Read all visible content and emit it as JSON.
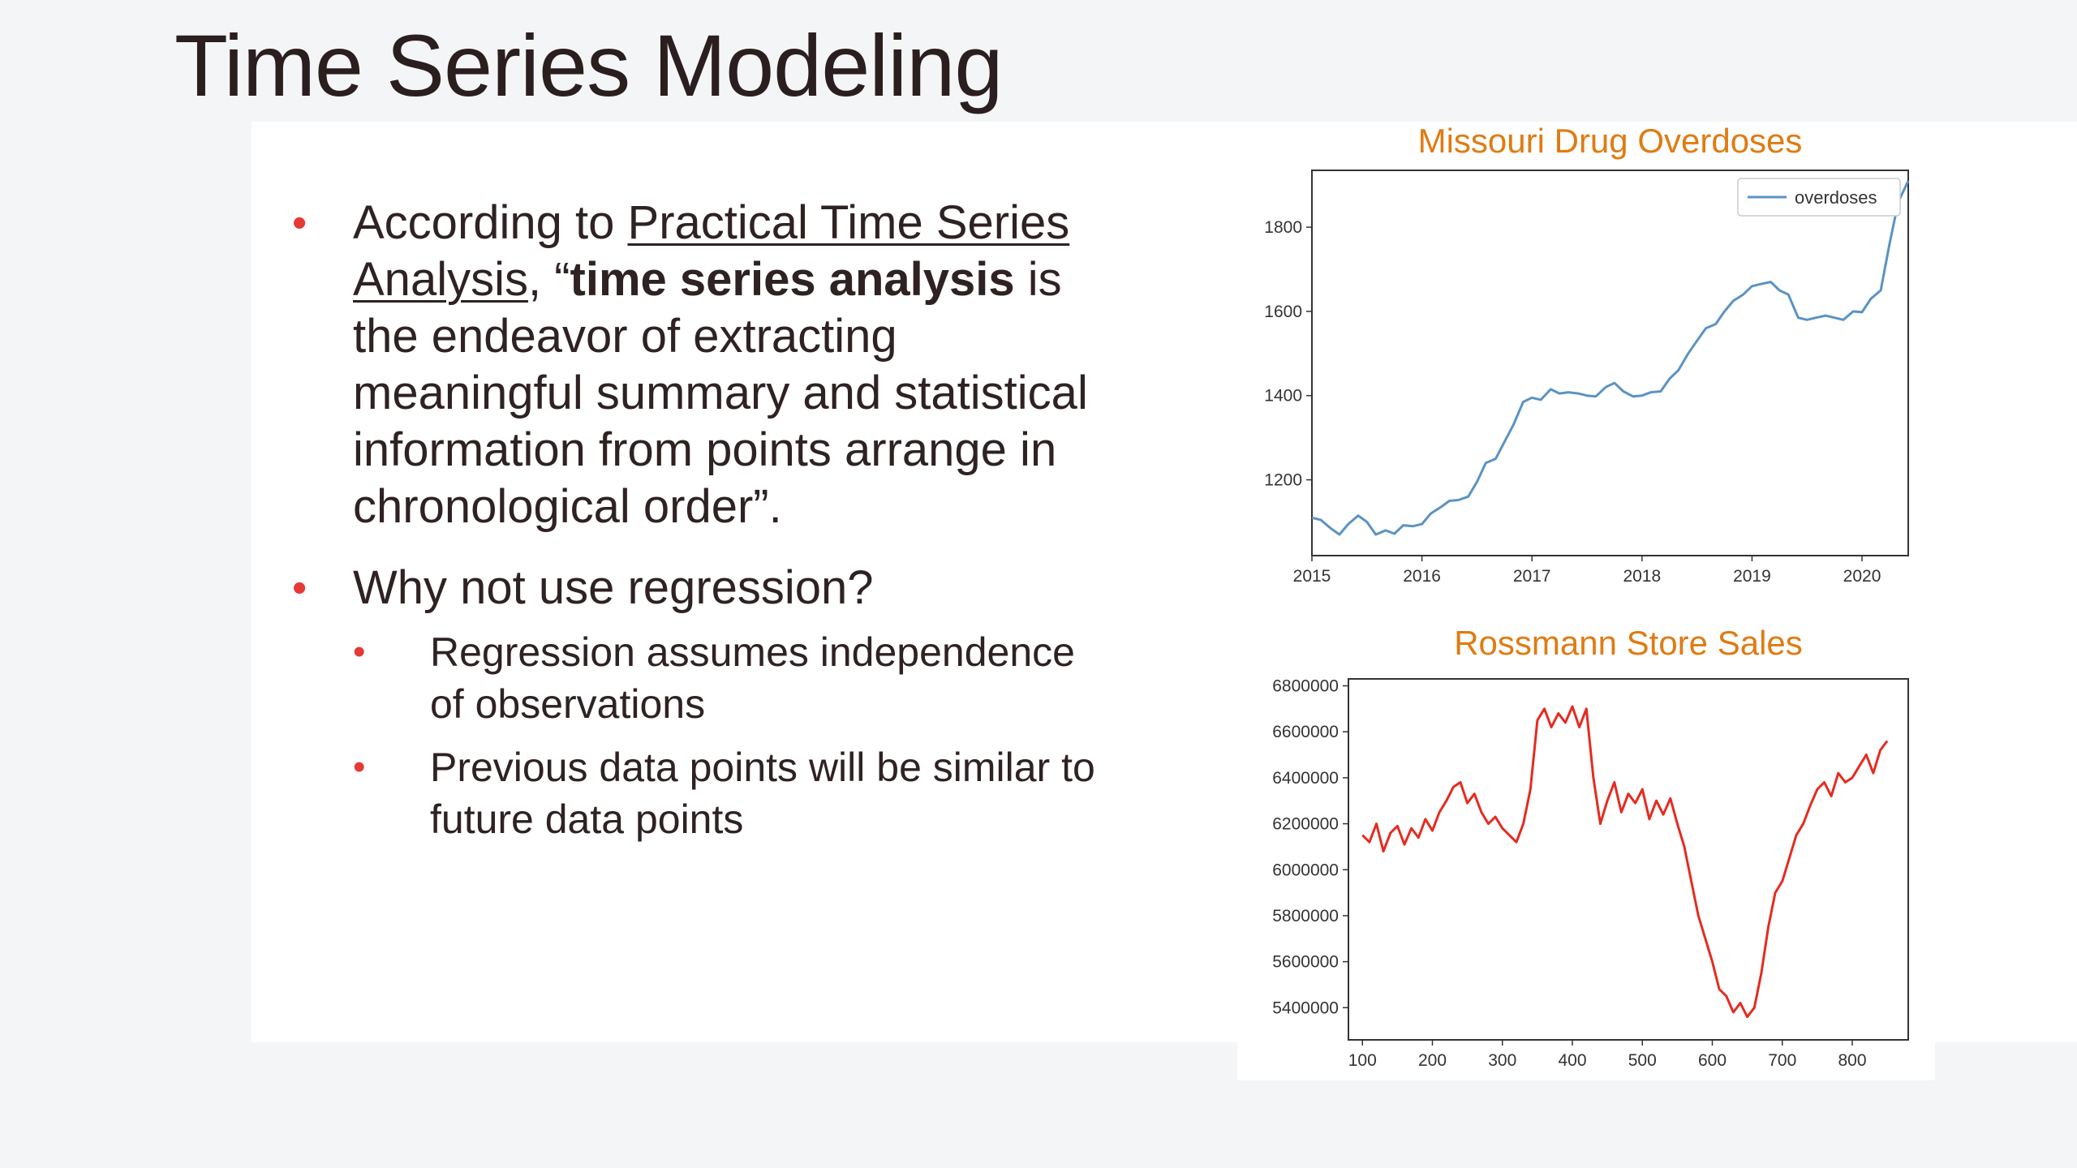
{
  "slide": {
    "title": "Time Series Modeling"
  },
  "bullets": {
    "b1": {
      "pre": "According to ",
      "link": "Practical Time Series Analysis",
      "mid": ", “",
      "bold": "time series analysis",
      "post": " is the endeavor of extracting meaningful summary and statistical information from points arrange in chronological order”."
    },
    "b2": {
      "text": "Why not use regression?",
      "sub": [
        "Regression assumes independence of observations",
        "Previous data points will be similar to future data points"
      ]
    }
  },
  "colors": {
    "bullet": "#e53935",
    "chart_title": "#e07b12",
    "overdoses_line": "#5b93c2",
    "sales_line": "#e52b20"
  },
  "chart_data": [
    {
      "type": "line",
      "title": "Missouri Drug Overdoses",
      "xlabel": "",
      "ylabel": "",
      "xlim": [
        2015,
        2020.42
      ],
      "ylim": [
        1020,
        1935
      ],
      "x_ticks": [
        "2015",
        "2016",
        "2017",
        "2018",
        "2019",
        "2020"
      ],
      "y_ticks": [
        "1200",
        "1400",
        "1600",
        "1800"
      ],
      "legend": "top-right",
      "grid": false,
      "series": [
        {
          "name": "overdoses",
          "x": [
            2015.0,
            2015.08,
            2015.17,
            2015.25,
            2015.33,
            2015.42,
            2015.5,
            2015.58,
            2015.67,
            2015.75,
            2015.83,
            2015.92,
            2016.0,
            2016.08,
            2016.17,
            2016.25,
            2016.33,
            2016.42,
            2016.5,
            2016.58,
            2016.67,
            2016.75,
            2016.83,
            2016.92,
            2017.0,
            2017.08,
            2017.17,
            2017.25,
            2017.33,
            2017.42,
            2017.5,
            2017.58,
            2017.67,
            2017.75,
            2017.83,
            2017.92,
            2018.0,
            2018.08,
            2018.17,
            2018.25,
            2018.33,
            2018.42,
            2018.5,
            2018.58,
            2018.67,
            2018.75,
            2018.83,
            2018.92,
            2019.0,
            2019.08,
            2019.17,
            2019.25,
            2019.33,
            2019.42,
            2019.5,
            2019.58,
            2019.67,
            2019.75,
            2019.83,
            2019.92,
            2020.0,
            2020.08,
            2020.17,
            2020.25,
            2020.33,
            2020.42
          ],
          "y": [
            1110,
            1105,
            1085,
            1070,
            1095,
            1115,
            1100,
            1070,
            1080,
            1072,
            1092,
            1090,
            1095,
            1120,
            1135,
            1150,
            1152,
            1160,
            1195,
            1240,
            1250,
            1290,
            1330,
            1385,
            1395,
            1390,
            1415,
            1405,
            1408,
            1405,
            1400,
            1398,
            1420,
            1430,
            1410,
            1398,
            1400,
            1408,
            1410,
            1440,
            1460,
            1500,
            1530,
            1560,
            1570,
            1600,
            1625,
            1640,
            1660,
            1665,
            1670,
            1650,
            1640,
            1585,
            1580,
            1585,
            1590,
            1585,
            1580,
            1600,
            1598,
            1630,
            1650,
            1760,
            1860,
            1910
          ]
        }
      ]
    },
    {
      "type": "line",
      "title": "Rossmann Store Sales",
      "xlabel": "",
      "ylabel": "",
      "xlim": [
        80,
        880
      ],
      "ylim": [
        5260000,
        6830000
      ],
      "x_ticks": [
        "100",
        "200",
        "300",
        "400",
        "500",
        "600",
        "700",
        "800"
      ],
      "y_ticks": [
        "5400000",
        "5600000",
        "5800000",
        "6000000",
        "6200000",
        "6400000",
        "6600000",
        "6800000"
      ],
      "legend": "none",
      "grid": false,
      "series": [
        {
          "name": "",
          "x": [
            100,
            110,
            120,
            130,
            140,
            150,
            160,
            170,
            180,
            190,
            200,
            210,
            220,
            230,
            240,
            250,
            260,
            270,
            280,
            290,
            300,
            310,
            320,
            330,
            340,
            350,
            360,
            370,
            380,
            390,
            400,
            410,
            420,
            430,
            440,
            450,
            460,
            470,
            480,
            490,
            500,
            510,
            520,
            530,
            540,
            550,
            560,
            570,
            580,
            590,
            600,
            610,
            620,
            630,
            640,
            650,
            660,
            670,
            680,
            690,
            700,
            710,
            720,
            730,
            740,
            750,
            760,
            770,
            780,
            790,
            800,
            810,
            820,
            830,
            840,
            850
          ],
          "y": [
            6150000,
            6120000,
            6200000,
            6080000,
            6160000,
            6190000,
            6110000,
            6180000,
            6140000,
            6220000,
            6170000,
            6250000,
            6300000,
            6360000,
            6380000,
            6290000,
            6330000,
            6250000,
            6200000,
            6230000,
            6180000,
            6150000,
            6120000,
            6200000,
            6350000,
            6650000,
            6700000,
            6620000,
            6680000,
            6640000,
            6710000,
            6620000,
            6700000,
            6400000,
            6200000,
            6300000,
            6380000,
            6250000,
            6330000,
            6290000,
            6350000,
            6220000,
            6300000,
            6240000,
            6310000,
            6200000,
            6100000,
            5950000,
            5800000,
            5700000,
            5600000,
            5480000,
            5450000,
            5380000,
            5420000,
            5360000,
            5400000,
            5550000,
            5750000,
            5900000,
            5950000,
            6050000,
            6150000,
            6200000,
            6280000,
            6350000,
            6380000,
            6320000,
            6420000,
            6380000,
            6400000,
            6450000,
            6500000,
            6420000,
            6520000,
            6560000
          ]
        }
      ]
    }
  ]
}
